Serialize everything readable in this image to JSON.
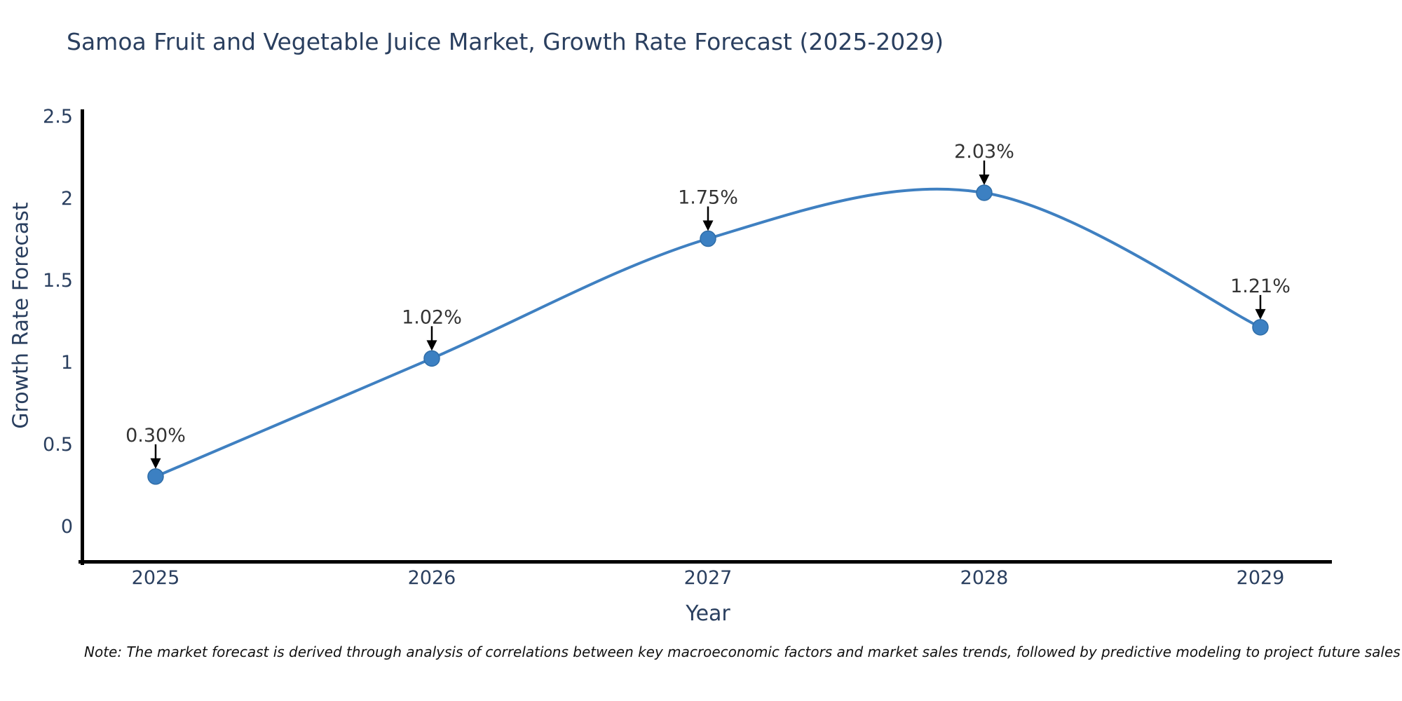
{
  "header": {
    "title": "Samoa Fruit and Vegetable Juice Market, Growth Rate Forecast (2025-2029)"
  },
  "footer": {
    "note": "Note: The market forecast is derived through analysis of correlations between key macroeconomic factors and market sales trends, followed by predictive modeling to project future sales"
  },
  "chart_data": {
    "type": "line",
    "title": "Samoa Fruit and Vegetable Juice Market, Growth Rate Forecast (2025-2029)",
    "x": [
      2025,
      2026,
      2027,
      2028,
      2029
    ],
    "x_tick_labels": [
      "2025",
      "2026",
      "2027",
      "2028",
      "2029"
    ],
    "values": [
      0.3,
      1.02,
      1.75,
      2.03,
      1.21
    ],
    "point_labels": [
      "0.30%",
      "1.02%",
      "1.75%",
      "2.03%",
      "1.21%"
    ],
    "xlabel": "Year",
    "ylabel": "Growth Rate Forecast",
    "ylim": [
      -0.22,
      2.5
    ],
    "yticks": [
      0,
      0.5,
      1,
      1.5,
      2,
      2.5
    ],
    "ytick_labels": [
      "0",
      "0.5",
      "1",
      "1.5",
      "2",
      "2.5"
    ],
    "line_shape": "spline",
    "grid": false,
    "legend": "none",
    "colors": {
      "line": "#3f80c1",
      "marker_fill": "#3c80c2",
      "marker_edge": "#2f6da8",
      "axis": "#000000",
      "tick_text": "#2a3f5f",
      "annotation_text": "#333333",
      "arrow": "#000000"
    }
  }
}
